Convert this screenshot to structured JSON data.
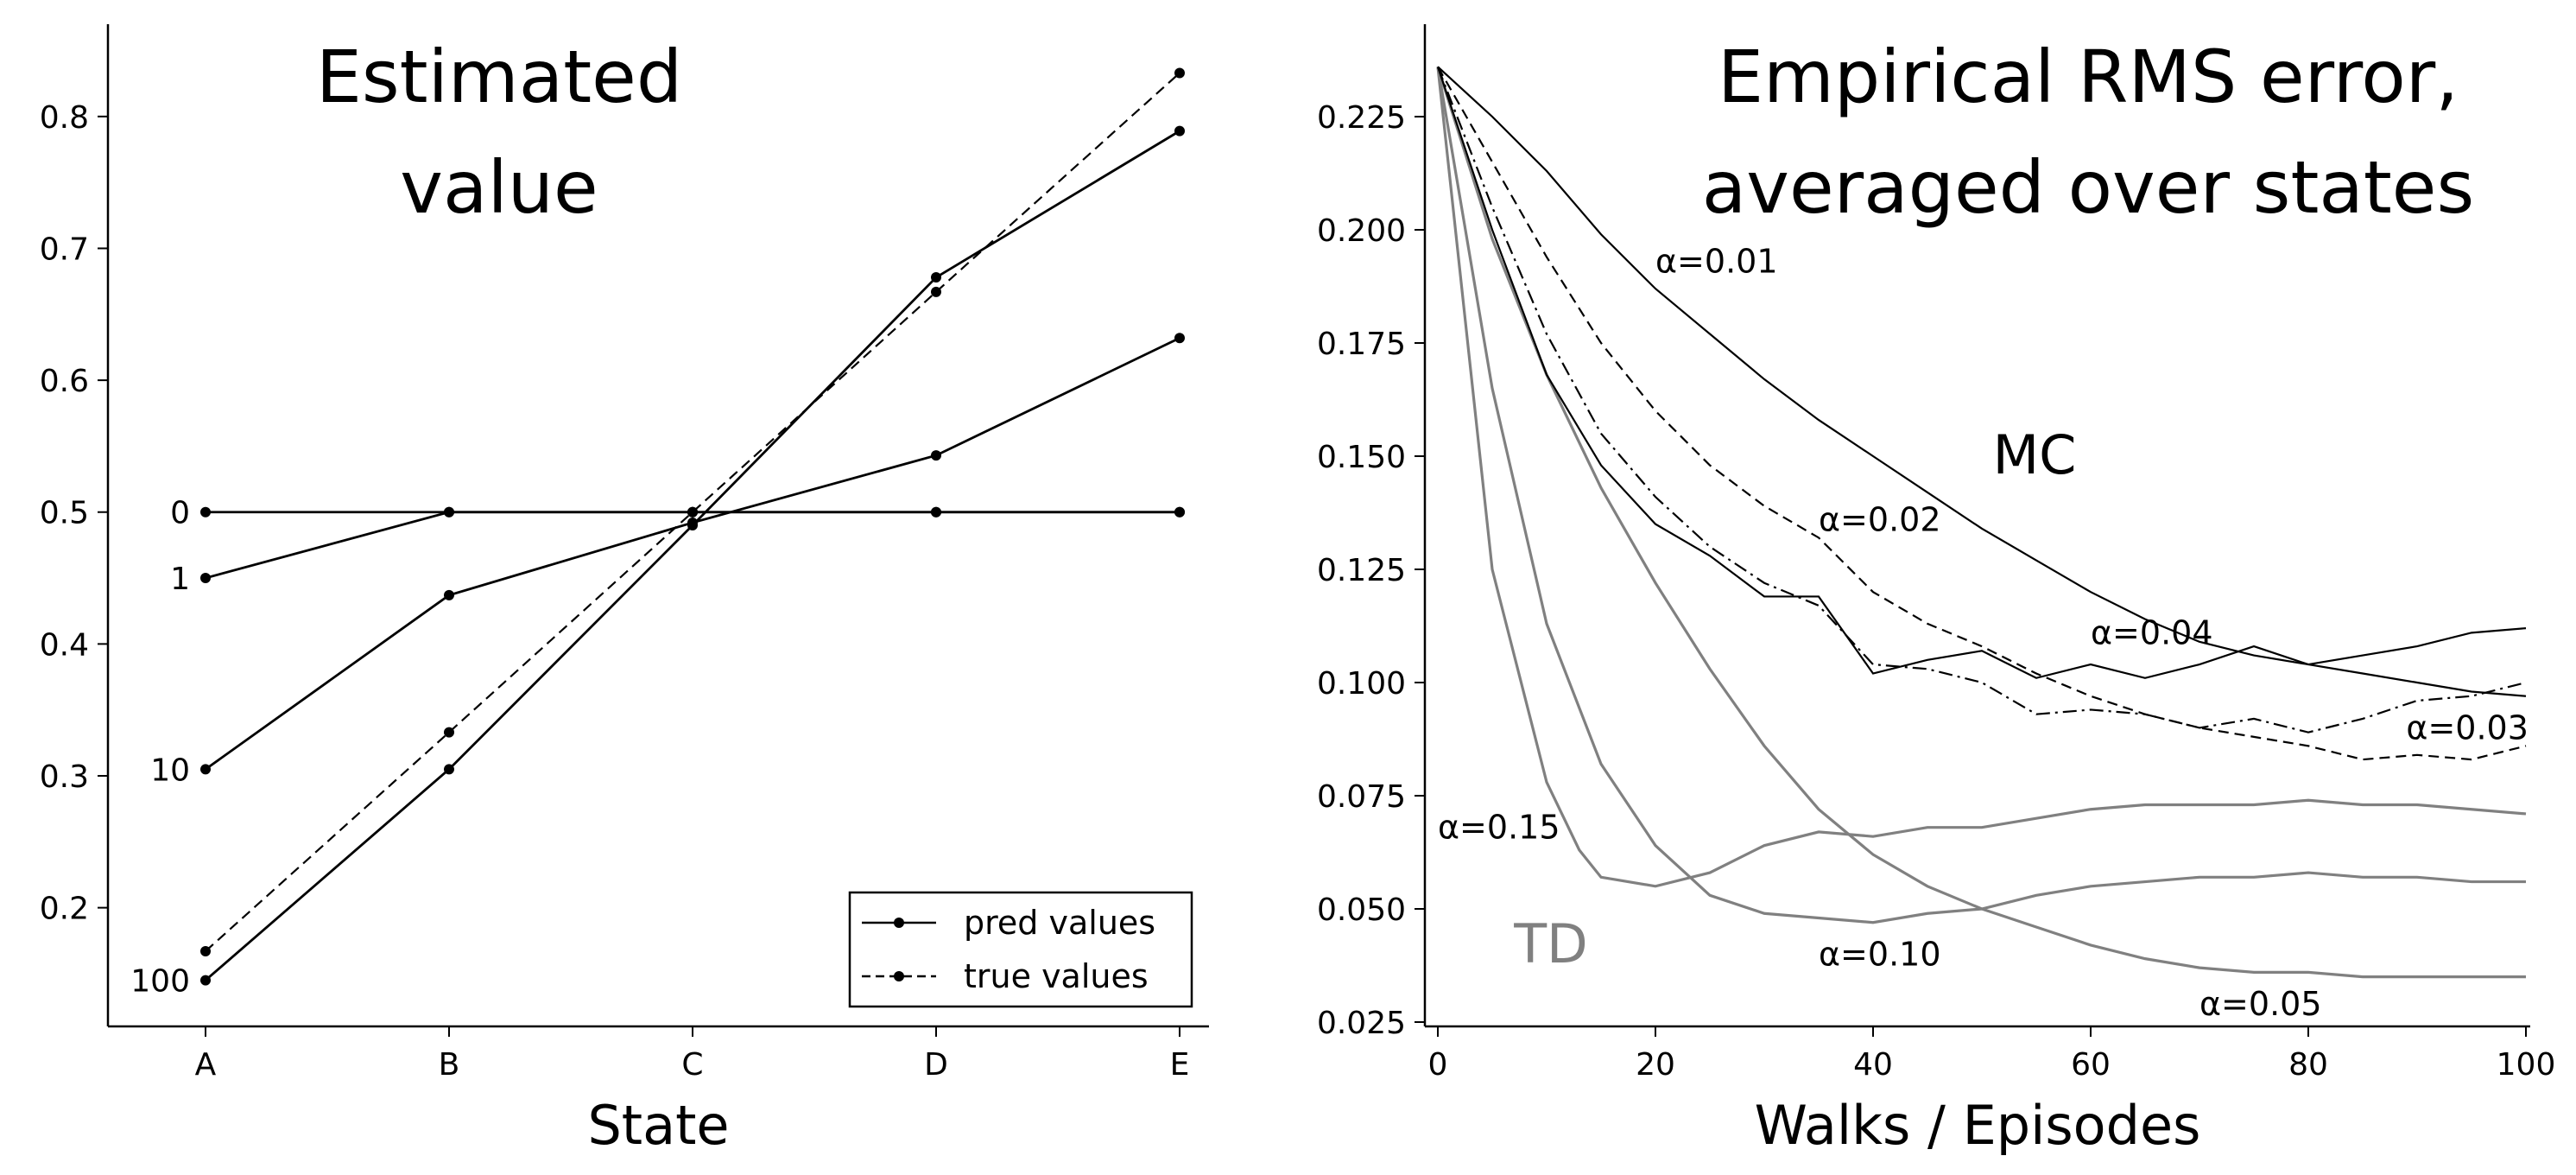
{
  "chart_data": [
    {
      "type": "line",
      "title_lines": [
        "Estimated",
        "value"
      ],
      "xlabel": "State",
      "ylabel": "",
      "categories": [
        "A",
        "B",
        "C",
        "D",
        "E"
      ],
      "ylim": [
        0.11,
        0.87
      ],
      "yticks": [
        "0.2",
        "0.3",
        "0.4",
        "0.5",
        "0.6",
        "0.7",
        "0.8"
      ],
      "legend_placement": "lower-right",
      "legend": [
        {
          "label": "pred values",
          "style": "solid"
        },
        {
          "label": "true values",
          "style": "dashed"
        }
      ],
      "series": [
        {
          "label": "0",
          "style": "solid",
          "values": [
            0.5,
            0.5,
            0.5,
            0.5,
            0.5
          ]
        },
        {
          "label": "1",
          "style": "solid",
          "values": [
            0.45,
            0.5,
            0.5,
            0.5,
            0.5
          ]
        },
        {
          "label": "10",
          "style": "solid",
          "values": [
            0.305,
            0.437,
            0.492,
            0.543,
            0.632
          ]
        },
        {
          "label": "100",
          "style": "solid",
          "values": [
            0.145,
            0.305,
            0.49,
            0.678,
            0.789
          ]
        },
        {
          "label": "",
          "style": "dashed",
          "values": [
            0.167,
            0.333,
            0.5,
            0.667,
            0.833
          ]
        }
      ]
    },
    {
      "type": "line",
      "title_lines": [
        "Empirical RMS error,",
        "averaged over states"
      ],
      "xlabel": "Walks / Episodes",
      "ylabel": "",
      "xlim": [
        -1,
        100
      ],
      "xticks": [
        "0",
        "20",
        "40",
        "60",
        "80",
        "100"
      ],
      "ylim": [
        0.022,
        0.243
      ],
      "yticks": [
        "0.025",
        "0.050",
        "0.075",
        "0.100",
        "0.125",
        "0.150",
        "0.175",
        "0.200",
        "0.225"
      ],
      "group_labels": [
        {
          "text": "MC",
          "x": 51,
          "y": 0.15,
          "color": "#000000"
        },
        {
          "text": "TD",
          "x": 7,
          "y": 0.042,
          "color": "#808080"
        }
      ],
      "annotations": [
        {
          "text": "α=0.01",
          "x": 20,
          "y": 0.193
        },
        {
          "text": "α=0.02",
          "x": 35,
          "y": 0.136
        },
        {
          "text": "α=0.04",
          "x": 60,
          "y": 0.111
        },
        {
          "text": "α=0.03",
          "x": 89,
          "y": 0.09
        },
        {
          "text": "α=0.15",
          "x": 0,
          "y": 0.068
        },
        {
          "text": "α=0.10",
          "x": 35,
          "y": 0.04
        },
        {
          "text": "α=0.05",
          "x": 70,
          "y": 0.029
        }
      ],
      "mc_series": [
        {
          "alpha": "0.01",
          "style": "solid",
          "points": [
            [
              0,
              0.236
            ],
            [
              5,
              0.225
            ],
            [
              10,
              0.213
            ],
            [
              15,
              0.199
            ],
            [
              20,
              0.187
            ],
            [
              25,
              0.177
            ],
            [
              30,
              0.167
            ],
            [
              35,
              0.158
            ],
            [
              40,
              0.15
            ],
            [
              45,
              0.142
            ],
            [
              50,
              0.134
            ],
            [
              55,
              0.127
            ],
            [
              60,
              0.12
            ],
            [
              65,
              0.114
            ],
            [
              70,
              0.109
            ],
            [
              75,
              0.106
            ],
            [
              80,
              0.104
            ],
            [
              85,
              0.102
            ],
            [
              90,
              0.1
            ],
            [
              95,
              0.098
            ],
            [
              100,
              0.097
            ]
          ]
        },
        {
          "alpha": "0.02",
          "style": "dashed",
          "points": [
            [
              0,
              0.236
            ],
            [
              5,
              0.215
            ],
            [
              10,
              0.194
            ],
            [
              15,
              0.175
            ],
            [
              20,
              0.16
            ],
            [
              25,
              0.148
            ],
            [
              30,
              0.139
            ],
            [
              35,
              0.132
            ],
            [
              40,
              0.12
            ],
            [
              45,
              0.113
            ],
            [
              50,
              0.108
            ],
            [
              55,
              0.102
            ],
            [
              60,
              0.097
            ],
            [
              65,
              0.093
            ],
            [
              70,
              0.09
            ],
            [
              75,
              0.088
            ],
            [
              80,
              0.086
            ],
            [
              85,
              0.083
            ],
            [
              90,
              0.084
            ],
            [
              95,
              0.083
            ],
            [
              100,
              0.086
            ]
          ]
        },
        {
          "alpha": "0.03",
          "style": "dashdot",
          "points": [
            [
              0,
              0.236
            ],
            [
              5,
              0.205
            ],
            [
              10,
              0.177
            ],
            [
              15,
              0.155
            ],
            [
              20,
              0.141
            ],
            [
              25,
              0.13
            ],
            [
              30,
              0.122
            ],
            [
              35,
              0.117
            ],
            [
              40,
              0.104
            ],
            [
              45,
              0.103
            ],
            [
              50,
              0.1
            ],
            [
              55,
              0.093
            ],
            [
              60,
              0.094
            ],
            [
              65,
              0.093
            ],
            [
              70,
              0.09
            ],
            [
              75,
              0.092
            ],
            [
              80,
              0.089
            ],
            [
              85,
              0.092
            ],
            [
              90,
              0.096
            ],
            [
              95,
              0.097
            ],
            [
              100,
              0.1
            ]
          ]
        },
        {
          "alpha": "0.04",
          "style": "solid",
          "points": [
            [
              0,
              0.236
            ],
            [
              5,
              0.2
            ],
            [
              10,
              0.168
            ],
            [
              15,
              0.148
            ],
            [
              20,
              0.135
            ],
            [
              25,
              0.128
            ],
            [
              30,
              0.119
            ],
            [
              35,
              0.119
            ],
            [
              40,
              0.102
            ],
            [
              45,
              0.105
            ],
            [
              50,
              0.107
            ],
            [
              55,
              0.101
            ],
            [
              60,
              0.104
            ],
            [
              65,
              0.101
            ],
            [
              70,
              0.104
            ],
            [
              75,
              0.108
            ],
            [
              80,
              0.104
            ],
            [
              85,
              0.106
            ],
            [
              90,
              0.108
            ],
            [
              95,
              0.111
            ],
            [
              100,
              0.112
            ]
          ]
        }
      ],
      "td_series": [
        {
          "alpha": "0.05",
          "style": "solid",
          "points": [
            [
              0,
              0.236
            ],
            [
              5,
              0.198
            ],
            [
              10,
              0.168
            ],
            [
              15,
              0.143
            ],
            [
              20,
              0.122
            ],
            [
              25,
              0.103
            ],
            [
              30,
              0.086
            ],
            [
              35,
              0.072
            ],
            [
              40,
              0.062
            ],
            [
              45,
              0.055
            ],
            [
              50,
              0.05
            ],
            [
              55,
              0.046
            ],
            [
              60,
              0.042
            ],
            [
              65,
              0.039
            ],
            [
              70,
              0.037
            ],
            [
              75,
              0.036
            ],
            [
              80,
              0.036
            ],
            [
              85,
              0.035
            ],
            [
              90,
              0.035
            ],
            [
              95,
              0.035
            ],
            [
              100,
              0.035
            ]
          ]
        },
        {
          "alpha": "0.10",
          "style": "solid",
          "points": [
            [
              0,
              0.236
            ],
            [
              5,
              0.165
            ],
            [
              10,
              0.113
            ],
            [
              15,
              0.082
            ],
            [
              20,
              0.064
            ],
            [
              25,
              0.053
            ],
            [
              30,
              0.049
            ],
            [
              35,
              0.048
            ],
            [
              40,
              0.047
            ],
            [
              45,
              0.049
            ],
            [
              50,
              0.05
            ],
            [
              55,
              0.053
            ],
            [
              60,
              0.055
            ],
            [
              65,
              0.056
            ],
            [
              70,
              0.057
            ],
            [
              75,
              0.057
            ],
            [
              80,
              0.058
            ],
            [
              85,
              0.057
            ],
            [
              90,
              0.057
            ],
            [
              95,
              0.056
            ],
            [
              100,
              0.056
            ]
          ]
        },
        {
          "alpha": "0.15",
          "style": "solid",
          "points": [
            [
              0,
              0.236
            ],
            [
              5,
              0.125
            ],
            [
              10,
              0.078
            ],
            [
              13,
              0.063
            ],
            [
              15,
              0.057
            ],
            [
              20,
              0.055
            ],
            [
              25,
              0.058
            ],
            [
              30,
              0.064
            ],
            [
              35,
              0.067
            ],
            [
              40,
              0.066
            ],
            [
              45,
              0.068
            ],
            [
              50,
              0.068
            ],
            [
              55,
              0.07
            ],
            [
              60,
              0.072
            ],
            [
              65,
              0.073
            ],
            [
              70,
              0.073
            ],
            [
              75,
              0.073
            ],
            [
              80,
              0.074
            ],
            [
              85,
              0.073
            ],
            [
              90,
              0.073
            ],
            [
              95,
              0.072
            ],
            [
              100,
              0.071
            ]
          ]
        }
      ]
    }
  ]
}
